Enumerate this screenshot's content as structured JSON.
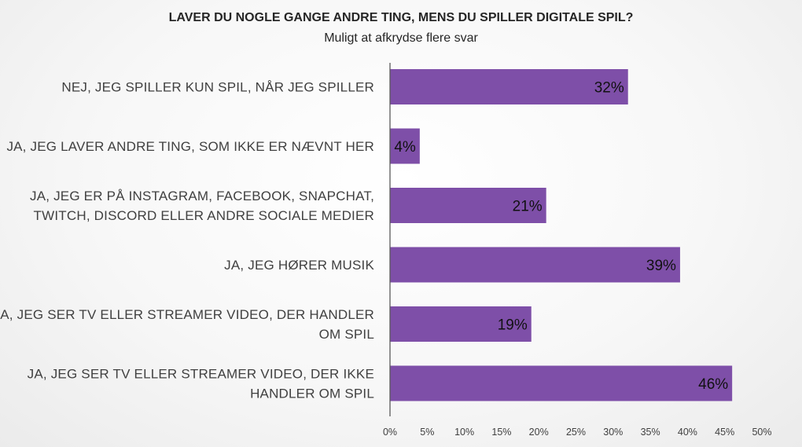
{
  "chart_data": {
    "type": "bar",
    "orientation": "horizontal",
    "title": "LAVER DU NOGLE GANGE ANDRE TING, MENS DU SPILLER DIGITALE SPIL?",
    "subtitle": "Muligt at afkrydse flere svar",
    "categories": [
      [
        "NEJ, JEG SPILLER KUN SPIL, NÅR JEG SPILLER"
      ],
      [
        "JA, JEG LAVER ANDRE TING, SOM IKKE ER NÆVNT HER"
      ],
      [
        "JA, JEG ER PÅ INSTAGRAM, FACEBOOK, SNAPCHAT,",
        "TWITCH, DISCORD ELLER ANDRE SOCIALE MEDIER"
      ],
      [
        "JA, JEG HØRER MUSIK"
      ],
      [
        "JA, JEG SER TV ELLER STREAMER VIDEO, DER HANDLER",
        "OM SPIL"
      ],
      [
        "JA, JEG SER TV ELLER STREAMER VIDEO, DER IKKE",
        "HANDLER OM SPIL"
      ]
    ],
    "values": [
      32,
      4,
      21,
      39,
      19,
      46
    ],
    "data_labels": [
      "32%",
      "4%",
      "21%",
      "39%",
      "19%",
      "46%"
    ],
    "xlim": [
      0,
      50
    ],
    "xticks": [
      "0%",
      "5%",
      "10%",
      "15%",
      "20%",
      "25%",
      "30%",
      "35%",
      "40%",
      "45%",
      "50%"
    ],
    "grid": false,
    "bar_color": "#7e4fa8"
  }
}
